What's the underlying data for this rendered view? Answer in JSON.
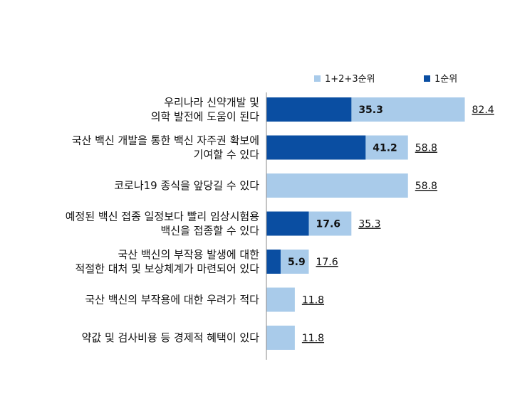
{
  "chart_data": {
    "type": "bar",
    "orientation": "horizontal",
    "categories": [
      [
        "우리나라 신약개발 및",
        "의학 발전에 도움이 된다"
      ],
      [
        "국산 백신 개발을 통한 백신 자주권 확보에",
        "기여할 수 있다"
      ],
      [
        "코로나19 종식을 앞당길 수 있다"
      ],
      [
        "예정된 백신 접종 일정보다 빨리 임상시험용",
        "백신을 접종할 수 있다"
      ],
      [
        "국산 백신의 부작용 발생에 대한",
        "적절한 대처 및 보상체계가 마련되어 있다"
      ],
      [
        "국산 백신의 부작용에 대한 우려가 적다"
      ],
      [
        "약값 및 검사비용 등 경제적 혜택이 있다"
      ]
    ],
    "series": [
      {
        "name": "1+2+3순위",
        "color": "#a9cbea",
        "values": [
          82.4,
          58.8,
          58.8,
          35.3,
          17.6,
          11.8,
          11.8
        ]
      },
      {
        "name": "1순위",
        "color": "#0a4ea2",
        "values": [
          35.3,
          41.2,
          null,
          17.6,
          5.9,
          null,
          null
        ]
      }
    ],
    "value_labels": {
      "total": [
        "82.4",
        "58.8",
        "58.8",
        "35.3",
        "17.6",
        "11.8",
        "11.8"
      ],
      "first": [
        "35.3",
        "41.2",
        "",
        "17.6",
        "5.9",
        "",
        ""
      ]
    },
    "legend_position": "top-right",
    "grid": false
  }
}
